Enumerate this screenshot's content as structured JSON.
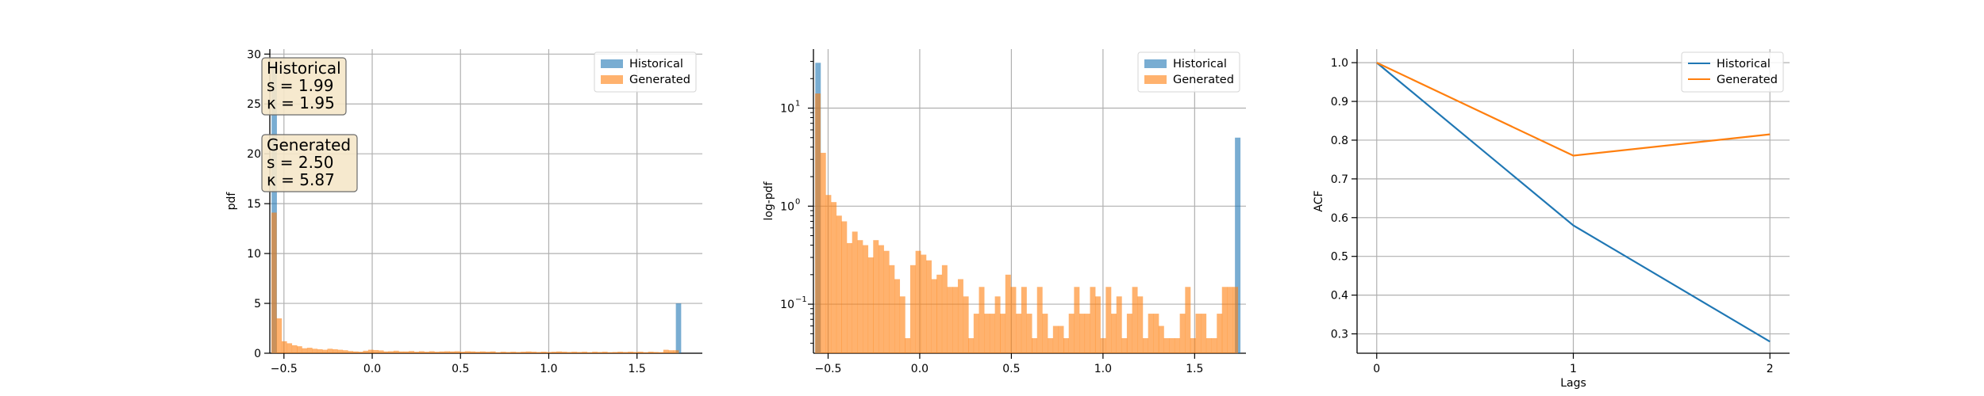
{
  "colors": {
    "historical": "#1f77b4",
    "generated": "#ff7f0e",
    "annotation_box": "#f5e7c9"
  },
  "chart_data": [
    {
      "type": "bar",
      "panel": "pdf-histogram",
      "xlabel": "",
      "ylabel": "pdf",
      "xlim": [
        -0.58,
        1.87
      ],
      "ylim": [
        0,
        30.5
      ],
      "xticks": [
        -0.5,
        0.0,
        0.5,
        1.0,
        1.5
      ],
      "xtick_labels": [
        "−0.5",
        "0.0",
        "0.5",
        "1.0",
        "1.5"
      ],
      "yticks": [
        0,
        5,
        10,
        15,
        20,
        25,
        30
      ],
      "ytick_labels": [
        "0",
        "5",
        "10",
        "15",
        "20",
        "25",
        "30"
      ],
      "grid": true,
      "legend": "top-right",
      "bin_width": 0.0288,
      "series": [
        {
          "name": "Historical",
          "color_key": "historical",
          "alpha": 0.6,
          "bars": [
            {
              "x": -0.57,
              "y": 29.0
            },
            {
              "x": 1.72,
              "y": 5.0
            }
          ]
        },
        {
          "name": "Generated",
          "color_key": "generated",
          "alpha": 0.6,
          "bars": [
            {
              "x": -0.571,
              "y": 14.1
            },
            {
              "x": -0.542,
              "y": 3.5
            },
            {
              "x": -0.513,
              "y": 1.2
            },
            {
              "x": -0.484,
              "y": 1.0
            },
            {
              "x": -0.455,
              "y": 0.8
            },
            {
              "x": -0.427,
              "y": 0.7
            },
            {
              "x": -0.398,
              "y": 0.5
            },
            {
              "x": -0.369,
              "y": 0.55
            },
            {
              "x": -0.34,
              "y": 0.45
            },
            {
              "x": -0.311,
              "y": 0.4
            },
            {
              "x": -0.282,
              "y": 0.35
            },
            {
              "x": -0.254,
              "y": 0.45
            },
            {
              "x": -0.225,
              "y": 0.4
            },
            {
              "x": -0.196,
              "y": 0.35
            },
            {
              "x": -0.167,
              "y": 0.3
            },
            {
              "x": -0.138,
              "y": 0.22
            },
            {
              "x": -0.109,
              "y": 0.18
            },
            {
              "x": -0.081,
              "y": 0.15
            },
            {
              "x": -0.052,
              "y": 0.25
            },
            {
              "x": -0.023,
              "y": 0.35
            },
            {
              "x": 0.006,
              "y": 0.32
            },
            {
              "x": 0.035,
              "y": 0.28
            },
            {
              "x": 0.064,
              "y": 0.18
            },
            {
              "x": 0.092,
              "y": 0.2
            },
            {
              "x": 0.121,
              "y": 0.25
            },
            {
              "x": 0.15,
              "y": 0.18
            },
            {
              "x": 0.179,
              "y": 0.18
            },
            {
              "x": 0.208,
              "y": 0.22
            },
            {
              "x": 0.237,
              "y": 0.15
            },
            {
              "x": 0.265,
              "y": 0.2
            },
            {
              "x": 0.294,
              "y": 0.15
            },
            {
              "x": 0.323,
              "y": 0.2
            },
            {
              "x": 0.352,
              "y": 0.15
            },
            {
              "x": 0.381,
              "y": 0.18
            },
            {
              "x": 0.41,
              "y": 0.2
            },
            {
              "x": 0.438,
              "y": 0.18
            },
            {
              "x": 0.467,
              "y": 0.2
            },
            {
              "x": 0.496,
              "y": 0.15
            },
            {
              "x": 0.525,
              "y": 0.2
            },
            {
              "x": 0.554,
              "y": 0.18
            },
            {
              "x": 0.583,
              "y": 0.15
            },
            {
              "x": 0.611,
              "y": 0.18
            },
            {
              "x": 0.64,
              "y": 0.15
            },
            {
              "x": 0.669,
              "y": 0.18
            },
            {
              "x": 0.698,
              "y": 0.1
            },
            {
              "x": 0.727,
              "y": 0.15
            },
            {
              "x": 0.756,
              "y": 0.12
            },
            {
              "x": 0.784,
              "y": 0.15
            },
            {
              "x": 0.813,
              "y": 0.12
            },
            {
              "x": 0.842,
              "y": 0.15
            },
            {
              "x": 0.871,
              "y": 0.18
            },
            {
              "x": 0.9,
              "y": 0.15
            },
            {
              "x": 0.929,
              "y": 0.12
            },
            {
              "x": 0.957,
              "y": 0.15
            },
            {
              "x": 0.986,
              "y": 0.12
            },
            {
              "x": 1.015,
              "y": 0.15
            },
            {
              "x": 1.044,
              "y": 0.18
            },
            {
              "x": 1.073,
              "y": 0.15
            },
            {
              "x": 1.102,
              "y": 0.12
            },
            {
              "x": 1.13,
              "y": 0.15
            },
            {
              "x": 1.159,
              "y": 0.12
            },
            {
              "x": 1.188,
              "y": 0.15
            },
            {
              "x": 1.217,
              "y": 0.1
            },
            {
              "x": 1.246,
              "y": 0.15
            },
            {
              "x": 1.275,
              "y": 0.12
            },
            {
              "x": 1.303,
              "y": 0.15
            },
            {
              "x": 1.332,
              "y": 0.1
            },
            {
              "x": 1.361,
              "y": 0.12
            },
            {
              "x": 1.39,
              "y": 0.15
            },
            {
              "x": 1.419,
              "y": 0.12
            },
            {
              "x": 1.448,
              "y": 0.15
            },
            {
              "x": 1.476,
              "y": 0.12
            },
            {
              "x": 1.505,
              "y": 0.15
            },
            {
              "x": 1.534,
              "y": 0.1
            },
            {
              "x": 1.563,
              "y": 0.15
            },
            {
              "x": 1.592,
              "y": 0.12
            },
            {
              "x": 1.621,
              "y": 0.1
            },
            {
              "x": 1.649,
              "y": 0.35
            },
            {
              "x": 1.678,
              "y": 0.3
            },
            {
              "x": 1.707,
              "y": 0.3
            }
          ]
        }
      ],
      "annotations": [
        {
          "name": "Historical",
          "lines": [
            "Historical",
            "s = 1.99",
            "κ = 1.95"
          ]
        },
        {
          "name": "Generated",
          "lines": [
            "Generated",
            "s = 2.50",
            "κ = 5.87"
          ]
        }
      ]
    },
    {
      "type": "bar",
      "panel": "log-pdf-histogram",
      "xlabel": "",
      "ylabel": "log-pdf",
      "yscale": "log",
      "xlim": [
        -0.58,
        1.78
      ],
      "ylim": [
        0.0316,
        40
      ],
      "xticks": [
        -0.5,
        0.0,
        0.5,
        1.0,
        1.5
      ],
      "xtick_labels": [
        "−0.5",
        "0.0",
        "0.5",
        "1.0",
        "1.5"
      ],
      "yticks": [
        0.1,
        1,
        10
      ],
      "ytick_labels": [
        "10",
        "10",
        "10"
      ],
      "ytick_exponents": [
        "−1",
        "0",
        "1"
      ],
      "grid": true,
      "legend": "top-right",
      "bin_width": 0.0288,
      "series": [
        {
          "name": "Historical",
          "color_key": "historical",
          "alpha": 0.6,
          "bars": [
            {
              "x": -0.57,
              "y": 29.0
            },
            {
              "x": 1.72,
              "y": 5.0
            }
          ]
        },
        {
          "name": "Generated",
          "color_key": "generated",
          "alpha": 0.6,
          "bars": [
            {
              "x": -0.571,
              "y": 14.1
            },
            {
              "x": -0.542,
              "y": 3.5
            },
            {
              "x": -0.513,
              "y": 1.3
            },
            {
              "x": -0.484,
              "y": 1.1
            },
            {
              "x": -0.455,
              "y": 0.8
            },
            {
              "x": -0.427,
              "y": 0.7
            },
            {
              "x": -0.398,
              "y": 0.42
            },
            {
              "x": -0.369,
              "y": 0.55
            },
            {
              "x": -0.34,
              "y": 0.45
            },
            {
              "x": -0.311,
              "y": 0.4
            },
            {
              "x": -0.282,
              "y": 0.3
            },
            {
              "x": -0.254,
              "y": 0.45
            },
            {
              "x": -0.225,
              "y": 0.4
            },
            {
              "x": -0.196,
              "y": 0.35
            },
            {
              "x": -0.167,
              "y": 0.25
            },
            {
              "x": -0.138,
              "y": 0.18
            },
            {
              "x": -0.109,
              "y": 0.12
            },
            {
              "x": -0.081,
              "y": 0.045
            },
            {
              "x": -0.052,
              "y": 0.25
            },
            {
              "x": -0.023,
              "y": 0.35
            },
            {
              "x": 0.006,
              "y": 0.32
            },
            {
              "x": 0.035,
              "y": 0.28
            },
            {
              "x": 0.064,
              "y": 0.18
            },
            {
              "x": 0.092,
              "y": 0.2
            },
            {
              "x": 0.121,
              "y": 0.25
            },
            {
              "x": 0.15,
              "y": 0.15
            },
            {
              "x": 0.179,
              "y": 0.15
            },
            {
              "x": 0.208,
              "y": 0.18
            },
            {
              "x": 0.237,
              "y": 0.12
            },
            {
              "x": 0.265,
              "y": 0.045
            },
            {
              "x": 0.294,
              "y": 0.08
            },
            {
              "x": 0.323,
              "y": 0.15
            },
            {
              "x": 0.352,
              "y": 0.08
            },
            {
              "x": 0.381,
              "y": 0.08
            },
            {
              "x": 0.41,
              "y": 0.12
            },
            {
              "x": 0.438,
              "y": 0.08
            },
            {
              "x": 0.467,
              "y": 0.2
            },
            {
              "x": 0.496,
              "y": 0.15
            },
            {
              "x": 0.525,
              "y": 0.08
            },
            {
              "x": 0.554,
              "y": 0.15
            },
            {
              "x": 0.583,
              "y": 0.08
            },
            {
              "x": 0.611,
              "y": 0.045
            },
            {
              "x": 0.64,
              "y": 0.15
            },
            {
              "x": 0.669,
              "y": 0.08
            },
            {
              "x": 0.698,
              "y": 0.045
            },
            {
              "x": 0.727,
              "y": 0.06
            },
            {
              "x": 0.756,
              "y": 0.06
            },
            {
              "x": 0.784,
              "y": 0.045
            },
            {
              "x": 0.813,
              "y": 0.08
            },
            {
              "x": 0.842,
              "y": 0.15
            },
            {
              "x": 0.871,
              "y": 0.08
            },
            {
              "x": 0.9,
              "y": 0.08
            },
            {
              "x": 0.929,
              "y": 0.15
            },
            {
              "x": 0.957,
              "y": 0.12
            },
            {
              "x": 0.986,
              "y": 0.045
            },
            {
              "x": 1.015,
              "y": 0.15
            },
            {
              "x": 1.044,
              "y": 0.08
            },
            {
              "x": 1.073,
              "y": 0.12
            },
            {
              "x": 1.102,
              "y": 0.045
            },
            {
              "x": 1.13,
              "y": 0.08
            },
            {
              "x": 1.159,
              "y": 0.15
            },
            {
              "x": 1.188,
              "y": 0.12
            },
            {
              "x": 1.217,
              "y": 0.045
            },
            {
              "x": 1.246,
              "y": 0.08
            },
            {
              "x": 1.275,
              "y": 0.08
            },
            {
              "x": 1.303,
              "y": 0.06
            },
            {
              "x": 1.332,
              "y": 0.045
            },
            {
              "x": 1.361,
              "y": 0.045
            },
            {
              "x": 1.39,
              "y": 0.045
            },
            {
              "x": 1.419,
              "y": 0.08
            },
            {
              "x": 1.448,
              "y": 0.15
            },
            {
              "x": 1.476,
              "y": 0.045
            },
            {
              "x": 1.505,
              "y": 0.08
            },
            {
              "x": 1.534,
              "y": 0.08
            },
            {
              "x": 1.563,
              "y": 0.045
            },
            {
              "x": 1.592,
              "y": 0.045
            },
            {
              "x": 1.621,
              "y": 0.08
            },
            {
              "x": 1.649,
              "y": 0.15
            },
            {
              "x": 1.678,
              "y": 0.15
            },
            {
              "x": 1.707,
              "y": 0.15
            }
          ]
        }
      ]
    },
    {
      "type": "line",
      "panel": "acf",
      "xlabel": "Lags",
      "ylabel": "ACF",
      "xlim": [
        -0.1,
        2.1
      ],
      "ylim": [
        0.25,
        1.035
      ],
      "xticks": [
        0,
        1,
        2
      ],
      "xtick_labels": [
        "0",
        "1",
        "2"
      ],
      "yticks": [
        0.3,
        0.4,
        0.5,
        0.6,
        0.7,
        0.8,
        0.9,
        1.0
      ],
      "ytick_labels": [
        "0.3",
        "0.4",
        "0.5",
        "0.6",
        "0.7",
        "0.8",
        "0.9",
        "1.0"
      ],
      "grid": true,
      "legend": "top-right",
      "x": [
        0,
        1,
        2
      ],
      "series": [
        {
          "name": "Historical",
          "color_key": "historical",
          "values": [
            1.0,
            0.58,
            0.28
          ]
        },
        {
          "name": "Generated",
          "color_key": "generated",
          "values": [
            1.0,
            0.76,
            0.815
          ]
        }
      ]
    }
  ]
}
